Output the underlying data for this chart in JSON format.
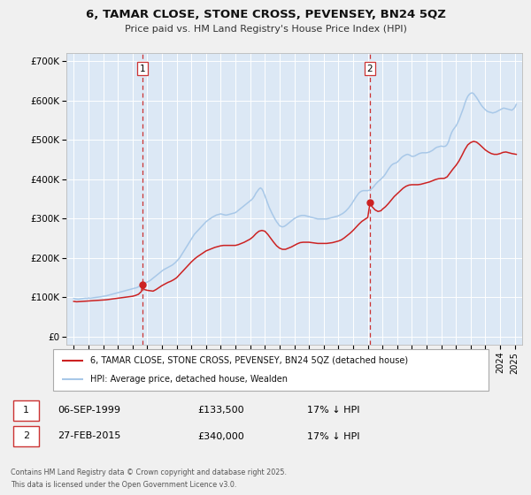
{
  "title": "6, TAMAR CLOSE, STONE CROSS, PEVENSEY, BN24 5QZ",
  "subtitle": "Price paid vs. HM Land Registry's House Price Index (HPI)",
  "legend_line1": "6, TAMAR CLOSE, STONE CROSS, PEVENSEY, BN24 5QZ (detached house)",
  "legend_line2": "HPI: Average price, detached house, Wealden",
  "footnote1": "Contains HM Land Registry data © Crown copyright and database right 2025.",
  "footnote2": "This data is licensed under the Open Government Licence v3.0.",
  "sale1_date": "06-SEP-1999",
  "sale1_price": "£133,500",
  "sale1_hpi": "17% ↓ HPI",
  "sale2_date": "27-FEB-2015",
  "sale2_price": "£340,000",
  "sale2_hpi": "17% ↓ HPI",
  "marker1_year": 1999.67,
  "marker2_year": 2015.15,
  "marker1_value": 133500,
  "marker2_value": 340000,
  "hpi_color": "#a8c8e8",
  "price_color": "#cc2222",
  "fig_bg_color": "#f0f0f0",
  "plot_bg_color": "#dce8f5",
  "vline_color": "#cc3333",
  "ylim_max": 720000,
  "ylim_min": -20000,
  "xlim_min": 1994.5,
  "xlim_max": 2025.5,
  "yticks": [
    0,
    100000,
    200000,
    300000,
    400000,
    500000,
    600000,
    700000
  ],
  "ytick_labels": [
    "£0",
    "£100K",
    "£200K",
    "£300K",
    "£400K",
    "£500K",
    "£600K",
    "£700K"
  ],
  "xticks": [
    1995,
    1996,
    1997,
    1998,
    1999,
    2000,
    2001,
    2002,
    2003,
    2004,
    2005,
    2006,
    2007,
    2008,
    2009,
    2010,
    2011,
    2012,
    2013,
    2014,
    2015,
    2016,
    2017,
    2018,
    2019,
    2020,
    2021,
    2022,
    2023,
    2024,
    2025
  ],
  "hpi_data": [
    [
      1995.0,
      97000
    ],
    [
      1995.1,
      96500
    ],
    [
      1995.2,
      96000
    ],
    [
      1995.3,
      95500
    ],
    [
      1995.4,
      96000
    ],
    [
      1995.5,
      96500
    ],
    [
      1995.6,
      97000
    ],
    [
      1995.7,
      97500
    ],
    [
      1995.8,
      98000
    ],
    [
      1995.9,
      97800
    ],
    [
      1996.0,
      98500
    ],
    [
      1996.1,
      98000
    ],
    [
      1996.2,
      98500
    ],
    [
      1996.3,
      99000
    ],
    [
      1996.4,
      99500
    ],
    [
      1996.5,
      100000
    ],
    [
      1996.6,
      100500
    ],
    [
      1996.7,
      101000
    ],
    [
      1996.8,
      101500
    ],
    [
      1996.9,
      102000
    ],
    [
      1997.0,
      103000
    ],
    [
      1997.1,
      103500
    ],
    [
      1997.2,
      104000
    ],
    [
      1997.3,
      105000
    ],
    [
      1997.4,
      106000
    ],
    [
      1997.5,
      107000
    ],
    [
      1997.6,
      108000
    ],
    [
      1997.7,
      109000
    ],
    [
      1997.8,
      110000
    ],
    [
      1997.9,
      111000
    ],
    [
      1998.0,
      112000
    ],
    [
      1998.1,
      113000
    ],
    [
      1998.2,
      114000
    ],
    [
      1998.3,
      115000
    ],
    [
      1998.4,
      116000
    ],
    [
      1998.5,
      117000
    ],
    [
      1998.6,
      118000
    ],
    [
      1998.7,
      119000
    ],
    [
      1998.8,
      120000
    ],
    [
      1998.9,
      121000
    ],
    [
      1999.0,
      122000
    ],
    [
      1999.1,
      123000
    ],
    [
      1999.2,
      124000
    ],
    [
      1999.3,
      125000
    ],
    [
      1999.4,
      127000
    ],
    [
      1999.5,
      129000
    ],
    [
      1999.6,
      131000
    ],
    [
      1999.7,
      133000
    ],
    [
      1999.8,
      135000
    ],
    [
      1999.9,
      137000
    ],
    [
      2000.0,
      139000
    ],
    [
      2000.1,
      141000
    ],
    [
      2000.2,
      143000
    ],
    [
      2000.3,
      146000
    ],
    [
      2000.4,
      149000
    ],
    [
      2000.5,
      152000
    ],
    [
      2000.6,
      155000
    ],
    [
      2000.7,
      158000
    ],
    [
      2000.8,
      161000
    ],
    [
      2000.9,
      164000
    ],
    [
      2001.0,
      167000
    ],
    [
      2001.1,
      170000
    ],
    [
      2001.2,
      172000
    ],
    [
      2001.3,
      174000
    ],
    [
      2001.4,
      176000
    ],
    [
      2001.5,
      178000
    ],
    [
      2001.6,
      180000
    ],
    [
      2001.7,
      182000
    ],
    [
      2001.8,
      185000
    ],
    [
      2001.9,
      188000
    ],
    [
      2002.0,
      192000
    ],
    [
      2002.1,
      196000
    ],
    [
      2002.2,
      200000
    ],
    [
      2002.3,
      206000
    ],
    [
      2002.4,
      212000
    ],
    [
      2002.5,
      218000
    ],
    [
      2002.6,
      224000
    ],
    [
      2002.7,
      230000
    ],
    [
      2002.8,
      236000
    ],
    [
      2002.9,
      242000
    ],
    [
      2003.0,
      248000
    ],
    [
      2003.1,
      254000
    ],
    [
      2003.2,
      260000
    ],
    [
      2003.3,
      264000
    ],
    [
      2003.4,
      268000
    ],
    [
      2003.5,
      272000
    ],
    [
      2003.6,
      276000
    ],
    [
      2003.7,
      280000
    ],
    [
      2003.8,
      284000
    ],
    [
      2003.9,
      288000
    ],
    [
      2004.0,
      292000
    ],
    [
      2004.1,
      295000
    ],
    [
      2004.2,
      298000
    ],
    [
      2004.3,
      300000
    ],
    [
      2004.4,
      303000
    ],
    [
      2004.5,
      305000
    ],
    [
      2004.6,
      307000
    ],
    [
      2004.7,
      309000
    ],
    [
      2004.8,
      310000
    ],
    [
      2004.9,
      311000
    ],
    [
      2005.0,
      312000
    ],
    [
      2005.1,
      311000
    ],
    [
      2005.2,
      310000
    ],
    [
      2005.3,
      309000
    ],
    [
      2005.4,
      309000
    ],
    [
      2005.5,
      310000
    ],
    [
      2005.6,
      311000
    ],
    [
      2005.7,
      312000
    ],
    [
      2005.8,
      313000
    ],
    [
      2005.9,
      314000
    ],
    [
      2006.0,
      315000
    ],
    [
      2006.1,
      318000
    ],
    [
      2006.2,
      321000
    ],
    [
      2006.3,
      324000
    ],
    [
      2006.4,
      327000
    ],
    [
      2006.5,
      330000
    ],
    [
      2006.6,
      333000
    ],
    [
      2006.7,
      336000
    ],
    [
      2006.8,
      339000
    ],
    [
      2006.9,
      342000
    ],
    [
      2007.0,
      345000
    ],
    [
      2007.1,
      348000
    ],
    [
      2007.2,
      352000
    ],
    [
      2007.3,
      358000
    ],
    [
      2007.4,
      365000
    ],
    [
      2007.5,
      370000
    ],
    [
      2007.6,
      375000
    ],
    [
      2007.7,
      378000
    ],
    [
      2007.8,
      375000
    ],
    [
      2007.9,
      368000
    ],
    [
      2008.0,
      358000
    ],
    [
      2008.1,
      348000
    ],
    [
      2008.2,
      338000
    ],
    [
      2008.3,
      328000
    ],
    [
      2008.4,
      320000
    ],
    [
      2008.5,
      312000
    ],
    [
      2008.6,
      305000
    ],
    [
      2008.7,
      298000
    ],
    [
      2008.8,
      292000
    ],
    [
      2008.9,
      287000
    ],
    [
      2009.0,
      282000
    ],
    [
      2009.1,
      280000
    ],
    [
      2009.2,
      279000
    ],
    [
      2009.3,
      280000
    ],
    [
      2009.4,
      282000
    ],
    [
      2009.5,
      285000
    ],
    [
      2009.6,
      288000
    ],
    [
      2009.7,
      291000
    ],
    [
      2009.8,
      294000
    ],
    [
      2009.9,
      297000
    ],
    [
      2010.0,
      300000
    ],
    [
      2010.1,
      302000
    ],
    [
      2010.2,
      304000
    ],
    [
      2010.3,
      306000
    ],
    [
      2010.4,
      307000
    ],
    [
      2010.5,
      308000
    ],
    [
      2010.6,
      308000
    ],
    [
      2010.7,
      308000
    ],
    [
      2010.8,
      307000
    ],
    [
      2010.9,
      306000
    ],
    [
      2011.0,
      305000
    ],
    [
      2011.1,
      304000
    ],
    [
      2011.2,
      303000
    ],
    [
      2011.3,
      302000
    ],
    [
      2011.4,
      301000
    ],
    [
      2011.5,
      300000
    ],
    [
      2011.6,
      299000
    ],
    [
      2011.7,
      299000
    ],
    [
      2011.8,
      299000
    ],
    [
      2011.9,
      299000
    ],
    [
      2012.0,
      299000
    ],
    [
      2012.1,
      299000
    ],
    [
      2012.2,
      299000
    ],
    [
      2012.3,
      300000
    ],
    [
      2012.4,
      301000
    ],
    [
      2012.5,
      302000
    ],
    [
      2012.6,
      303000
    ],
    [
      2012.7,
      304000
    ],
    [
      2012.8,
      305000
    ],
    [
      2012.9,
      306000
    ],
    [
      2013.0,
      307000
    ],
    [
      2013.1,
      309000
    ],
    [
      2013.2,
      311000
    ],
    [
      2013.3,
      313000
    ],
    [
      2013.4,
      316000
    ],
    [
      2013.5,
      319000
    ],
    [
      2013.6,
      323000
    ],
    [
      2013.7,
      327000
    ],
    [
      2013.8,
      332000
    ],
    [
      2013.9,
      337000
    ],
    [
      2014.0,
      343000
    ],
    [
      2014.1,
      349000
    ],
    [
      2014.2,
      355000
    ],
    [
      2014.3,
      360000
    ],
    [
      2014.4,
      365000
    ],
    [
      2014.5,
      368000
    ],
    [
      2014.6,
      370000
    ],
    [
      2014.7,
      371000
    ],
    [
      2014.8,
      371000
    ],
    [
      2014.9,
      371000
    ],
    [
      2015.0,
      371000
    ],
    [
      2015.1,
      372000
    ],
    [
      2015.2,
      374000
    ],
    [
      2015.3,
      377000
    ],
    [
      2015.4,
      381000
    ],
    [
      2015.5,
      386000
    ],
    [
      2015.6,
      390000
    ],
    [
      2015.7,
      394000
    ],
    [
      2015.8,
      397000
    ],
    [
      2015.9,
      400000
    ],
    [
      2016.0,
      404000
    ],
    [
      2016.1,
      408000
    ],
    [
      2016.2,
      413000
    ],
    [
      2016.3,
      419000
    ],
    [
      2016.4,
      425000
    ],
    [
      2016.5,
      430000
    ],
    [
      2016.6,
      435000
    ],
    [
      2016.7,
      438000
    ],
    [
      2016.8,
      440000
    ],
    [
      2016.9,
      441000
    ],
    [
      2017.0,
      443000
    ],
    [
      2017.1,
      447000
    ],
    [
      2017.2,
      451000
    ],
    [
      2017.3,
      455000
    ],
    [
      2017.4,
      458000
    ],
    [
      2017.5,
      460000
    ],
    [
      2017.6,
      462000
    ],
    [
      2017.7,
      463000
    ],
    [
      2017.8,
      462000
    ],
    [
      2017.9,
      460000
    ],
    [
      2018.0,
      458000
    ],
    [
      2018.1,
      458000
    ],
    [
      2018.2,
      459000
    ],
    [
      2018.3,
      461000
    ],
    [
      2018.4,
      463000
    ],
    [
      2018.5,
      465000
    ],
    [
      2018.6,
      466000
    ],
    [
      2018.7,
      467000
    ],
    [
      2018.8,
      467000
    ],
    [
      2018.9,
      467000
    ],
    [
      2019.0,
      467000
    ],
    [
      2019.1,
      468000
    ],
    [
      2019.2,
      469000
    ],
    [
      2019.3,
      471000
    ],
    [
      2019.4,
      473000
    ],
    [
      2019.5,
      476000
    ],
    [
      2019.6,
      479000
    ],
    [
      2019.7,
      481000
    ],
    [
      2019.8,
      482000
    ],
    [
      2019.9,
      483000
    ],
    [
      2020.0,
      484000
    ],
    [
      2020.1,
      483000
    ],
    [
      2020.2,
      483000
    ],
    [
      2020.3,
      484000
    ],
    [
      2020.4,
      488000
    ],
    [
      2020.5,
      496000
    ],
    [
      2020.6,
      508000
    ],
    [
      2020.7,
      518000
    ],
    [
      2020.8,
      525000
    ],
    [
      2020.9,
      530000
    ],
    [
      2021.0,
      535000
    ],
    [
      2021.1,
      542000
    ],
    [
      2021.2,
      550000
    ],
    [
      2021.3,
      560000
    ],
    [
      2021.4,
      570000
    ],
    [
      2021.5,
      580000
    ],
    [
      2021.6,
      592000
    ],
    [
      2021.7,
      602000
    ],
    [
      2021.8,
      610000
    ],
    [
      2021.9,
      615000
    ],
    [
      2022.0,
      618000
    ],
    [
      2022.1,
      619000
    ],
    [
      2022.2,
      617000
    ],
    [
      2022.3,
      612000
    ],
    [
      2022.4,
      607000
    ],
    [
      2022.5,
      601000
    ],
    [
      2022.6,
      595000
    ],
    [
      2022.7,
      589000
    ],
    [
      2022.8,
      584000
    ],
    [
      2022.9,
      580000
    ],
    [
      2023.0,
      576000
    ],
    [
      2023.1,
      573000
    ],
    [
      2023.2,
      571000
    ],
    [
      2023.3,
      570000
    ],
    [
      2023.4,
      569000
    ],
    [
      2023.5,
      568000
    ],
    [
      2023.6,
      569000
    ],
    [
      2023.7,
      570000
    ],
    [
      2023.8,
      572000
    ],
    [
      2023.9,
      574000
    ],
    [
      2024.0,
      576000
    ],
    [
      2024.1,
      578000
    ],
    [
      2024.2,
      580000
    ],
    [
      2024.3,
      580000
    ],
    [
      2024.4,
      579000
    ],
    [
      2024.5,
      578000
    ],
    [
      2024.6,
      577000
    ],
    [
      2024.7,
      576000
    ],
    [
      2024.8,
      575000
    ],
    [
      2024.9,
      578000
    ],
    [
      2025.0,
      582000
    ],
    [
      2025.1,
      590000
    ]
  ],
  "price_data": [
    [
      1995.0,
      90000
    ],
    [
      1995.2,
      89000
    ],
    [
      1995.4,
      89500
    ],
    [
      1995.6,
      90000
    ],
    [
      1995.8,
      90500
    ],
    [
      1996.0,
      91000
    ],
    [
      1996.2,
      91500
    ],
    [
      1996.4,
      92000
    ],
    [
      1996.6,
      92500
    ],
    [
      1996.8,
      93000
    ],
    [
      1997.0,
      93500
    ],
    [
      1997.2,
      94000
    ],
    [
      1997.4,
      95000
    ],
    [
      1997.6,
      96000
    ],
    [
      1997.8,
      97000
    ],
    [
      1998.0,
      98000
    ],
    [
      1998.2,
      99000
    ],
    [
      1998.4,
      100000
    ],
    [
      1998.6,
      101000
    ],
    [
      1998.8,
      102000
    ],
    [
      1999.0,
      103000
    ],
    [
      1999.2,
      105000
    ],
    [
      1999.4,
      108000
    ],
    [
      1999.6,
      115000
    ],
    [
      1999.67,
      133500
    ],
    [
      1999.8,
      120000
    ],
    [
      2000.0,
      118000
    ],
    [
      2000.2,
      117000
    ],
    [
      2000.4,
      116000
    ],
    [
      2000.6,
      120000
    ],
    [
      2000.8,
      125000
    ],
    [
      2001.0,
      130000
    ],
    [
      2001.2,
      134000
    ],
    [
      2001.4,
      138000
    ],
    [
      2001.6,
      141000
    ],
    [
      2001.8,
      145000
    ],
    [
      2002.0,
      150000
    ],
    [
      2002.2,
      158000
    ],
    [
      2002.4,
      166000
    ],
    [
      2002.6,
      174000
    ],
    [
      2002.8,
      182000
    ],
    [
      2003.0,
      190000
    ],
    [
      2003.2,
      197000
    ],
    [
      2003.4,
      203000
    ],
    [
      2003.6,
      208000
    ],
    [
      2003.8,
      213000
    ],
    [
      2004.0,
      218000
    ],
    [
      2004.2,
      221000
    ],
    [
      2004.4,
      224000
    ],
    [
      2004.6,
      227000
    ],
    [
      2004.8,
      229000
    ],
    [
      2005.0,
      231000
    ],
    [
      2005.2,
      232000
    ],
    [
      2005.4,
      232000
    ],
    [
      2005.6,
      232000
    ],
    [
      2005.8,
      232000
    ],
    [
      2006.0,
      232000
    ],
    [
      2006.2,
      234000
    ],
    [
      2006.4,
      237000
    ],
    [
      2006.6,
      240000
    ],
    [
      2006.8,
      244000
    ],
    [
      2007.0,
      248000
    ],
    [
      2007.2,
      254000
    ],
    [
      2007.4,
      262000
    ],
    [
      2007.6,
      268000
    ],
    [
      2007.8,
      270000
    ],
    [
      2008.0,
      268000
    ],
    [
      2008.2,
      260000
    ],
    [
      2008.4,
      250000
    ],
    [
      2008.6,
      240000
    ],
    [
      2008.8,
      231000
    ],
    [
      2009.0,
      225000
    ],
    [
      2009.2,
      222000
    ],
    [
      2009.4,
      222000
    ],
    [
      2009.6,
      225000
    ],
    [
      2009.8,
      228000
    ],
    [
      2010.0,
      232000
    ],
    [
      2010.2,
      236000
    ],
    [
      2010.4,
      239000
    ],
    [
      2010.6,
      240000
    ],
    [
      2010.8,
      240000
    ],
    [
      2011.0,
      240000
    ],
    [
      2011.2,
      239000
    ],
    [
      2011.4,
      238000
    ],
    [
      2011.6,
      237000
    ],
    [
      2011.8,
      237000
    ],
    [
      2012.0,
      237000
    ],
    [
      2012.2,
      237000
    ],
    [
      2012.4,
      238000
    ],
    [
      2012.6,
      239000
    ],
    [
      2012.8,
      241000
    ],
    [
      2013.0,
      243000
    ],
    [
      2013.2,
      246000
    ],
    [
      2013.4,
      251000
    ],
    [
      2013.6,
      257000
    ],
    [
      2013.8,
      263000
    ],
    [
      2014.0,
      270000
    ],
    [
      2014.2,
      278000
    ],
    [
      2014.4,
      286000
    ],
    [
      2014.6,
      293000
    ],
    [
      2014.8,
      298000
    ],
    [
      2015.0,
      303000
    ],
    [
      2015.15,
      340000
    ],
    [
      2015.3,
      330000
    ],
    [
      2015.5,
      322000
    ],
    [
      2015.7,
      318000
    ],
    [
      2015.9,
      320000
    ],
    [
      2016.0,
      324000
    ],
    [
      2016.2,
      330000
    ],
    [
      2016.4,
      338000
    ],
    [
      2016.6,
      347000
    ],
    [
      2016.8,
      356000
    ],
    [
      2017.0,
      363000
    ],
    [
      2017.2,
      370000
    ],
    [
      2017.4,
      377000
    ],
    [
      2017.6,
      382000
    ],
    [
      2017.8,
      385000
    ],
    [
      2018.0,
      386000
    ],
    [
      2018.2,
      386000
    ],
    [
      2018.4,
      386000
    ],
    [
      2018.6,
      387000
    ],
    [
      2018.8,
      389000
    ],
    [
      2019.0,
      391000
    ],
    [
      2019.2,
      393000
    ],
    [
      2019.4,
      396000
    ],
    [
      2019.6,
      399000
    ],
    [
      2019.8,
      401000
    ],
    [
      2020.0,
      402000
    ],
    [
      2020.2,
      402000
    ],
    [
      2020.4,
      406000
    ],
    [
      2020.6,
      416000
    ],
    [
      2020.8,
      426000
    ],
    [
      2021.0,
      435000
    ],
    [
      2021.2,
      446000
    ],
    [
      2021.4,
      460000
    ],
    [
      2021.6,
      475000
    ],
    [
      2021.8,
      487000
    ],
    [
      2022.0,
      493000
    ],
    [
      2022.2,
      496000
    ],
    [
      2022.4,
      494000
    ],
    [
      2022.6,
      488000
    ],
    [
      2022.8,
      481000
    ],
    [
      2023.0,
      474000
    ],
    [
      2023.2,
      469000
    ],
    [
      2023.4,
      465000
    ],
    [
      2023.6,
      463000
    ],
    [
      2023.8,
      463000
    ],
    [
      2024.0,
      465000
    ],
    [
      2024.2,
      468000
    ],
    [
      2024.4,
      469000
    ],
    [
      2024.6,
      467000
    ],
    [
      2024.8,
      465000
    ],
    [
      2025.1,
      463000
    ]
  ]
}
